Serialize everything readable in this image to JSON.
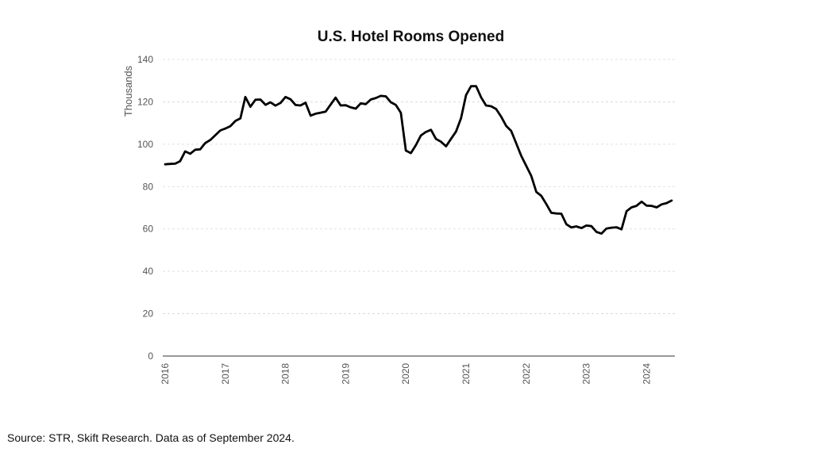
{
  "chart_data": {
    "type": "line",
    "title": "U.S. Hotel Rooms Opened",
    "xlabel": "",
    "ylabel": "Thousands",
    "ylim": [
      0,
      140
    ],
    "yticks": [
      0,
      20,
      40,
      60,
      80,
      100,
      120,
      140
    ],
    "xlim": [
      2016,
      2024.45
    ],
    "xticks": [
      "2016",
      "2017",
      "2018",
      "2019",
      "2020",
      "2021",
      "2022",
      "2023",
      "2024"
    ],
    "grid": "horizontal dashed",
    "legend": "none",
    "series": [
      {
        "color": "#000000",
        "x": [
          2016.0,
          2016.083,
          2016.167,
          2016.25,
          2016.333,
          2016.417,
          2016.5,
          2016.583,
          2016.667,
          2016.75,
          2016.833,
          2016.917,
          2017.0,
          2017.083,
          2017.167,
          2017.25,
          2017.333,
          2017.417,
          2017.5,
          2017.583,
          2017.667,
          2017.75,
          2017.833,
          2017.917,
          2018.0,
          2018.083,
          2018.167,
          2018.25,
          2018.333,
          2018.417,
          2018.5,
          2018.583,
          2018.667,
          2018.75,
          2018.833,
          2018.917,
          2019.0,
          2019.083,
          2019.167,
          2019.25,
          2019.333,
          2019.417,
          2019.5,
          2019.583,
          2019.667,
          2019.75,
          2019.833,
          2019.917,
          2020.0,
          2020.083,
          2020.167,
          2020.25,
          2020.333,
          2020.417,
          2020.5,
          2020.583,
          2020.667,
          2020.75,
          2020.833,
          2020.917,
          2021.0,
          2021.083,
          2021.167,
          2021.25,
          2021.333,
          2021.417,
          2021.5,
          2021.583,
          2021.667,
          2021.75,
          2021.833,
          2021.917,
          2022.0,
          2022.083,
          2022.167,
          2022.25,
          2022.333,
          2022.417,
          2022.5,
          2022.583,
          2022.667,
          2022.75,
          2022.833,
          2022.917,
          2023.0,
          2023.083,
          2023.167,
          2023.25,
          2023.333,
          2023.417,
          2023.5,
          2023.583,
          2023.667,
          2023.75,
          2023.833,
          2023.917,
          2024.0,
          2024.083,
          2024.167,
          2024.25,
          2024.333,
          2024.417
        ],
        "values": [
          90.5,
          90.7,
          90.8,
          92.0,
          96.6,
          95.5,
          97.4,
          97.6,
          100.6,
          102.0,
          104.2,
          106.5,
          107.4,
          108.5,
          111.0,
          112.2,
          122.3,
          117.7,
          121.0,
          121.1,
          118.6,
          119.8,
          118.2,
          119.5,
          122.3,
          121.2,
          118.5,
          118.3,
          119.6,
          113.5,
          114.4,
          114.9,
          115.4,
          118.7,
          122.0,
          118.3,
          118.4,
          117.4,
          116.8,
          119.3,
          118.9,
          121.1,
          121.8,
          122.8,
          122.6,
          119.8,
          118.6,
          114.8,
          97.0,
          95.8,
          99.6,
          104.1,
          105.8,
          106.8,
          102.5,
          101.2,
          99.0,
          102.5,
          105.9,
          112.3,
          123.2,
          127.4,
          127.4,
          122.1,
          118.3,
          117.9,
          116.6,
          113.0,
          108.6,
          106.3,
          100.5,
          94.5,
          89.8,
          85.1,
          77.5,
          75.6,
          71.8,
          67.6,
          67.3,
          67.2,
          62.2,
          60.7,
          61.2,
          60.4,
          61.6,
          61.3,
          58.6,
          57.8,
          60.2,
          60.6,
          60.8,
          59.8,
          68.4,
          70.2,
          70.9,
          72.9,
          71.0,
          70.9,
          70.2,
          71.6,
          72.2,
          73.4
        ]
      }
    ]
  },
  "footer": {
    "source": "Source: STR, Skift Research. Data as of September 2024."
  }
}
